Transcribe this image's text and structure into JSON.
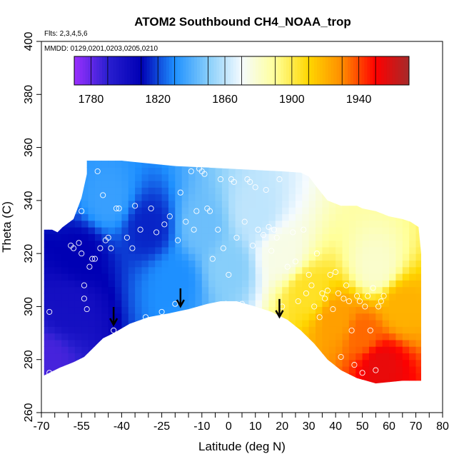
{
  "chart_data": {
    "type": "heatmap",
    "title": "ATOM2 Southbound CH4_NOAA_trop",
    "flights_text": "Flts: 2,3,4,5,6",
    "dates_text": "MMDD: 0129,0201,0203,0205,0210",
    "xlabel": "Latitude (deg N)",
    "ylabel": "Theta (C)",
    "xlim": [
      -70,
      80
    ],
    "ylim": [
      260,
      400
    ],
    "x_ticks": [
      -70,
      -55,
      -40,
      -25,
      -10,
      0,
      10,
      20,
      30,
      40,
      50,
      60,
      70,
      80
    ],
    "x_minor_ticks": [
      -65,
      -60,
      -50,
      -45,
      -35,
      -30,
      -20,
      -15,
      -5,
      5,
      15,
      25,
      35,
      45,
      55,
      65,
      75
    ],
    "y_ticks": [
      260,
      280,
      300,
      320,
      340,
      360,
      380,
      400
    ],
    "colorbar": {
      "range": [
        1770,
        1970
      ],
      "tick_values": [
        1780,
        1820,
        1860,
        1900,
        1940
      ],
      "tick_labels": [
        "1780",
        "1820",
        "1860",
        "1900",
        "1940"
      ],
      "divider_values": [
        1790,
        1810,
        1830,
        1850,
        1870,
        1890,
        1910,
        1930,
        1950
      ],
      "colors": [
        "#9b30ff",
        "#2a1fd0",
        "#0000b4",
        "#1e90ff",
        "#87cefa",
        "#f5fbff",
        "#ffff99",
        "#ffd700",
        "#ff8c00",
        "#ff0000",
        "#a52a2a"
      ]
    },
    "field_samples": [
      {
        "lat": -68,
        "theta": 280,
        "value": 1785
      },
      {
        "lat": -60,
        "theta": 300,
        "value": 1800
      },
      {
        "lat": -55,
        "theta": 320,
        "value": 1810
      },
      {
        "lat": -45,
        "theta": 340,
        "value": 1835
      },
      {
        "lat": -30,
        "theta": 330,
        "value": 1815
      },
      {
        "lat": -20,
        "theta": 310,
        "value": 1830
      },
      {
        "lat": -10,
        "theta": 330,
        "value": 1845
      },
      {
        "lat": 0,
        "theta": 315,
        "value": 1850
      },
      {
        "lat": 10,
        "theta": 335,
        "value": 1860
      },
      {
        "lat": 20,
        "theta": 320,
        "value": 1875
      },
      {
        "lat": 30,
        "theta": 305,
        "value": 1905
      },
      {
        "lat": 40,
        "theta": 295,
        "value": 1925
      },
      {
        "lat": 50,
        "theta": 290,
        "value": 1935
      },
      {
        "lat": 57,
        "theta": 278,
        "value": 1955
      },
      {
        "lat": 65,
        "theta": 300,
        "value": 1920
      },
      {
        "lat": 55,
        "theta": 315,
        "value": 1880
      }
    ],
    "samples": [
      {
        "lat": -67,
        "theta": 298
      },
      {
        "lat": -67,
        "theta": 275
      },
      {
        "lat": -59,
        "theta": 323
      },
      {
        "lat": -58,
        "theta": 322
      },
      {
        "lat": -56,
        "theta": 324
      },
      {
        "lat": -55,
        "theta": 336
      },
      {
        "lat": -55,
        "theta": 320
      },
      {
        "lat": -54,
        "theta": 308
      },
      {
        "lat": -54,
        "theta": 303
      },
      {
        "lat": -53,
        "theta": 299
      },
      {
        "lat": -52,
        "theta": 315
      },
      {
        "lat": -51,
        "theta": 318
      },
      {
        "lat": -50,
        "theta": 318
      },
      {
        "lat": -49,
        "theta": 351
      },
      {
        "lat": -48,
        "theta": 322
      },
      {
        "lat": -47,
        "theta": 342
      },
      {
        "lat": -46,
        "theta": 325
      },
      {
        "lat": -45,
        "theta": 326
      },
      {
        "lat": -44,
        "theta": 322
      },
      {
        "lat": -43,
        "theta": 291
      },
      {
        "lat": -42,
        "theta": 337
      },
      {
        "lat": -41,
        "theta": 337
      },
      {
        "lat": -38,
        "theta": 326
      },
      {
        "lat": -37,
        "theta": 292
      },
      {
        "lat": -36,
        "theta": 322
      },
      {
        "lat": -35,
        "theta": 338
      },
      {
        "lat": -33,
        "theta": 329
      },
      {
        "lat": -31,
        "theta": 296
      },
      {
        "lat": -29,
        "theta": 337
      },
      {
        "lat": -27,
        "theta": 328
      },
      {
        "lat": -25,
        "theta": 298
      },
      {
        "lat": -24,
        "theta": 331
      },
      {
        "lat": -22,
        "theta": 334
      },
      {
        "lat": -20,
        "theta": 301
      },
      {
        "lat": -19,
        "theta": 325
      },
      {
        "lat": -18,
        "theta": 343
      },
      {
        "lat": -16,
        "theta": 332
      },
      {
        "lat": -14,
        "theta": 351
      },
      {
        "lat": -13,
        "theta": 329
      },
      {
        "lat": -12,
        "theta": 336
      },
      {
        "lat": -11,
        "theta": 352
      },
      {
        "lat": -10,
        "theta": 351
      },
      {
        "lat": -9,
        "theta": 350
      },
      {
        "lat": -8,
        "theta": 337
      },
      {
        "lat": -7,
        "theta": 336
      },
      {
        "lat": -6,
        "theta": 318
      },
      {
        "lat": -5,
        "theta": 300
      },
      {
        "lat": -4,
        "theta": 329
      },
      {
        "lat": -3,
        "theta": 348
      },
      {
        "lat": -2,
        "theta": 322
      },
      {
        "lat": -1,
        "theta": 301
      },
      {
        "lat": 0,
        "theta": 312
      },
      {
        "lat": 1,
        "theta": 348
      },
      {
        "lat": 2,
        "theta": 347
      },
      {
        "lat": 3,
        "theta": 326
      },
      {
        "lat": 5,
        "theta": 301
      },
      {
        "lat": 6,
        "theta": 332
      },
      {
        "lat": 7,
        "theta": 348
      },
      {
        "lat": 8,
        "theta": 347
      },
      {
        "lat": 9,
        "theta": 323
      },
      {
        "lat": 10,
        "theta": 345
      },
      {
        "lat": 11,
        "theta": 329
      },
      {
        "lat": 12,
        "theta": 296
      },
      {
        "lat": 13,
        "theta": 327
      },
      {
        "lat": 14,
        "theta": 344
      },
      {
        "lat": 15,
        "theta": 330
      },
      {
        "lat": 16,
        "theta": 321
      },
      {
        "lat": 17,
        "theta": 329
      },
      {
        "lat": 18,
        "theta": 326
      },
      {
        "lat": 19,
        "theta": 348
      },
      {
        "lat": 20,
        "theta": 300
      },
      {
        "lat": 21,
        "theta": 293
      },
      {
        "lat": 22,
        "theta": 315
      },
      {
        "lat": 23,
        "theta": 291
      },
      {
        "lat": 24,
        "theta": 328
      },
      {
        "lat": 25,
        "theta": 317
      },
      {
        "lat": 26,
        "theta": 302
      },
      {
        "lat": 27,
        "theta": 289
      },
      {
        "lat": 28,
        "theta": 329
      },
      {
        "lat": 29,
        "theta": 305
      },
      {
        "lat": 30,
        "theta": 312
      },
      {
        "lat": 31,
        "theta": 308
      },
      {
        "lat": 32,
        "theta": 300
      },
      {
        "lat": 33,
        "theta": 320
      },
      {
        "lat": 34,
        "theta": 296
      },
      {
        "lat": 35,
        "theta": 305
      },
      {
        "lat": 36,
        "theta": 303
      },
      {
        "lat": 37,
        "theta": 306
      },
      {
        "lat": 38,
        "theta": 312
      },
      {
        "lat": 39,
        "theta": 299
      },
      {
        "lat": 40,
        "theta": 313
      },
      {
        "lat": 41,
        "theta": 305
      },
      {
        "lat": 42,
        "theta": 281
      },
      {
        "lat": 43,
        "theta": 303
      },
      {
        "lat": 44,
        "theta": 308
      },
      {
        "lat": 45,
        "theta": 302
      },
      {
        "lat": 46,
        "theta": 291
      },
      {
        "lat": 47,
        "theta": 278
      },
      {
        "lat": 48,
        "theta": 304
      },
      {
        "lat": 49,
        "theta": 302
      },
      {
        "lat": 50,
        "theta": 275
      },
      {
        "lat": 51,
        "theta": 300
      },
      {
        "lat": 52,
        "theta": 304
      },
      {
        "lat": 53,
        "theta": 291
      },
      {
        "lat": 54,
        "theta": 307
      },
      {
        "lat": 55,
        "theta": 276
      },
      {
        "lat": 56,
        "theta": 300
      },
      {
        "lat": 57,
        "theta": 302
      },
      {
        "lat": 58,
        "theta": 304
      }
    ],
    "arrows": [
      {
        "lat": -43,
        "theta": 295
      },
      {
        "lat": -18,
        "theta": 302
      },
      {
        "lat": 19,
        "theta": 298
      }
    ],
    "grid": false,
    "legend": "colorbar inside plot, top"
  }
}
